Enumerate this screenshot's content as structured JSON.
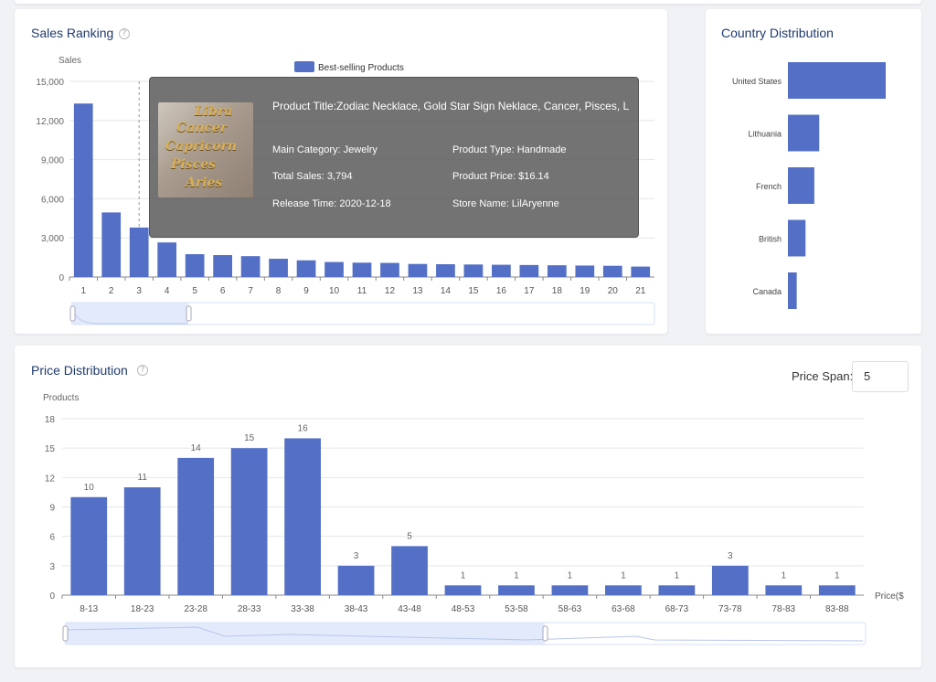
{
  "top_card1": {
    "title": "Sales Ranking",
    "help_icon": "question-circle-icon"
  },
  "top_card2": {
    "title": "Country Distribution"
  },
  "bottom_card": {
    "title": "Price Distribution",
    "help_icon": "question-circle-icon",
    "price_span_label": "Price Span:",
    "price_span_value": "5"
  },
  "tooltip": {
    "title": "Product Title:Zodiac Necklace, Gold Star Sign Neklace, Cancer, Pisces, L",
    "main_category": "Main Category: Jewelry",
    "product_type": "Product Type: Handmade",
    "total_sales": "Total Sales: 3,794",
    "product_price": "Product Price: $16.14",
    "release_time": "Release Time: 2020-12-18",
    "store_name": "Store Name: LilAryenne",
    "thumb_words": [
      "Libra",
      "Cancer",
      "Capricorn",
      "Pisces",
      "Aries"
    ]
  },
  "colors": {
    "bar": "#5470c6",
    "title": "#1f3a6e",
    "grid": "#e6e6e6"
  },
  "chart_data": [
    {
      "id": "sales-ranking",
      "type": "bar",
      "title": "Sales Ranking",
      "ylabel": "Sales",
      "legend": [
        "Best-selling Products"
      ],
      "legend_position": "top-center",
      "categories": [
        "1",
        "2",
        "3",
        "4",
        "5",
        "6",
        "7",
        "8",
        "9",
        "10",
        "11",
        "12",
        "13",
        "14",
        "15",
        "16",
        "17",
        "18",
        "19",
        "20",
        "21"
      ],
      "values": [
        13300,
        4950,
        3794,
        2650,
        1750,
        1680,
        1600,
        1400,
        1280,
        1150,
        1100,
        1080,
        1000,
        980,
        960,
        940,
        920,
        900,
        880,
        860,
        800
      ],
      "yticks": [
        0,
        3000,
        6000,
        9000,
        12000,
        15000
      ],
      "ytick_labels": [
        "0",
        "3,000",
        "6,000",
        "9,000",
        "12,000",
        "15,000"
      ],
      "ylim": [
        0,
        15000
      ],
      "highlighted_category": "3",
      "grid": true
    },
    {
      "id": "country-distribution",
      "type": "bar",
      "orientation": "horizontal",
      "title": "Country Distribution",
      "categories": [
        "United States",
        "Lithuania",
        "French",
        "British",
        "Canada"
      ],
      "values": [
        100,
        32,
        27,
        18,
        9
      ],
      "xlim": [
        0,
        100
      ]
    },
    {
      "id": "price-distribution",
      "type": "bar",
      "title": "Price Distribution",
      "ylabel": "Products",
      "xlabel": "Price($",
      "categories": [
        "8-13",
        "18-23",
        "23-28",
        "28-33",
        "33-38",
        "38-43",
        "43-48",
        "48-53",
        "53-58",
        "58-63",
        "63-68",
        "68-73",
        "73-78",
        "78-83",
        "83-88"
      ],
      "values": [
        10,
        11,
        14,
        15,
        16,
        3,
        5,
        1,
        1,
        1,
        1,
        1,
        3,
        1,
        1
      ],
      "yticks": [
        0,
        3,
        6,
        9,
        12,
        15,
        18
      ],
      "ylim": [
        0,
        18
      ],
      "grid": true
    }
  ]
}
